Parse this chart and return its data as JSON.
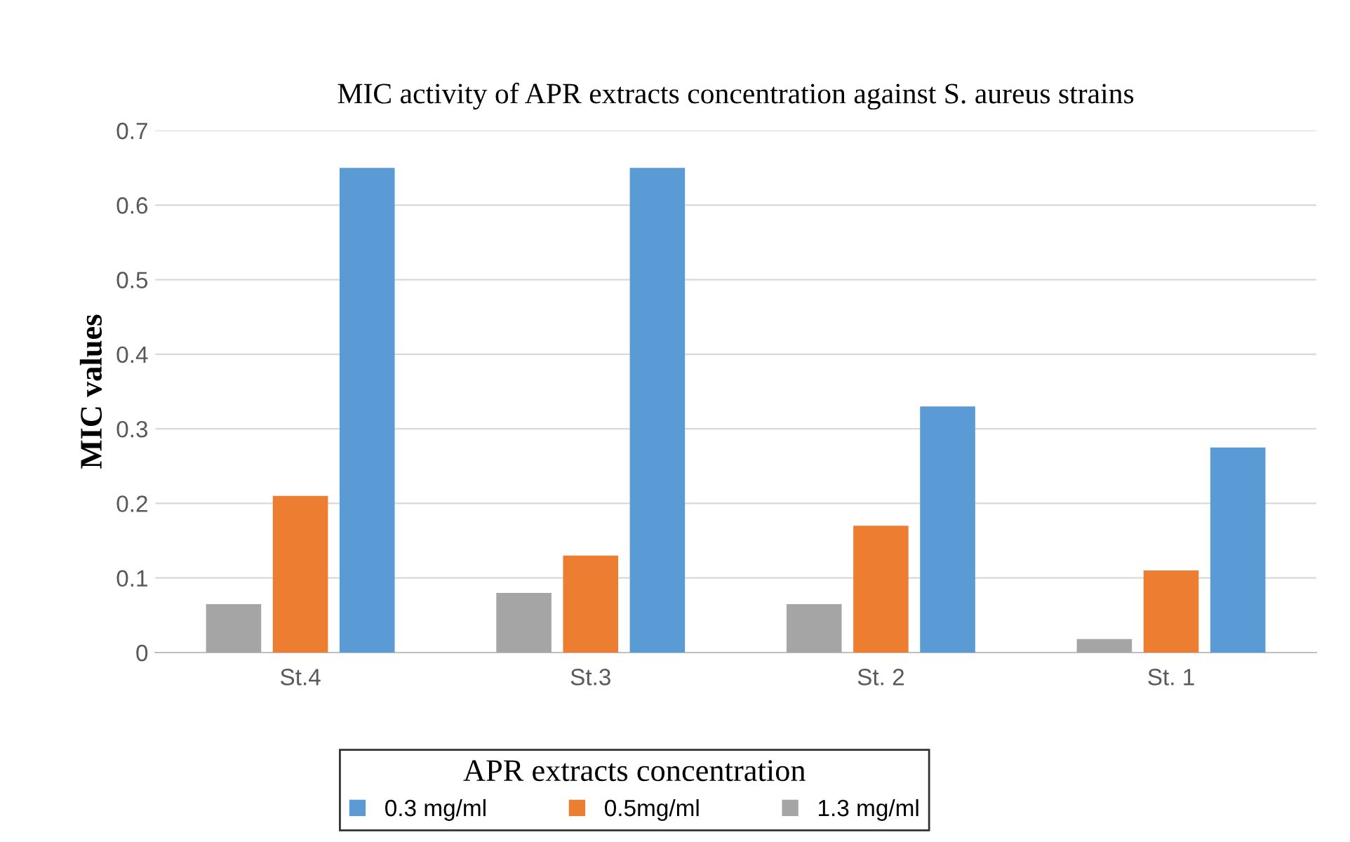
{
  "chart_data": {
    "type": "bar",
    "title": "MIC activity of APR extracts concentration against S. aureus strains",
    "ylabel": "MIC values",
    "legend_title": "APR extracts concentration",
    "categories": [
      "St.4",
      "St.3",
      "St. 2",
      "St. 1"
    ],
    "series": [
      {
        "name": "0.3 mg/ml",
        "color": "#5b9bd5",
        "values": [
          0.65,
          0.65,
          0.33,
          0.275
        ]
      },
      {
        "name": "0.5mg/ml",
        "color": "#ed7d31",
        "values": [
          0.21,
          0.13,
          0.17,
          0.11
        ]
      },
      {
        "name": "1.3 mg/ml",
        "color": "#a5a5a5",
        "values": [
          0.065,
          0.08,
          0.065,
          0.018
        ]
      }
    ],
    "ylim": [
      0,
      0.7
    ],
    "yticks": [
      {
        "value": 0,
        "label": "0"
      },
      0.1,
      0.2,
      0.3,
      0.4,
      0.5,
      0.6,
      0.7
    ],
    "grid": "y",
    "legend": "bottom"
  }
}
